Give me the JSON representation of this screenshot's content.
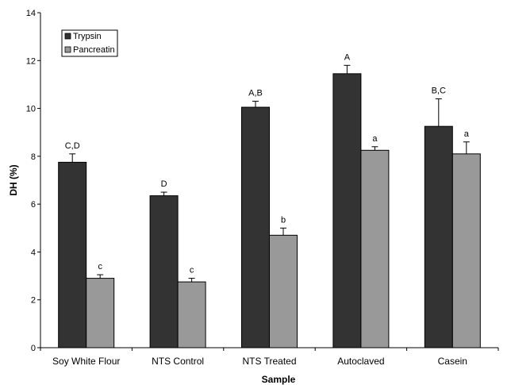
{
  "chart_data": {
    "type": "bar",
    "xlabel": "Sample",
    "ylabel": "DH (%)",
    "ylim": [
      0,
      14
    ],
    "yticks": [
      0,
      2,
      4,
      6,
      8,
      10,
      12,
      14
    ],
    "grid": false,
    "legend_position": "top-left",
    "categories": [
      "Soy White Flour",
      "NTS Control",
      "NTS Treated",
      "Autoclaved",
      "Casein"
    ],
    "series": [
      {
        "name": "Trypsin",
        "color": "#333333",
        "values": [
          7.75,
          6.35,
          10.05,
          11.45,
          9.25
        ],
        "errors": [
          0.35,
          0.15,
          0.25,
          0.35,
          1.15
        ],
        "labels": [
          "C,D",
          "D",
          "A,B",
          "A",
          "B,C"
        ]
      },
      {
        "name": "Pancreatin",
        "color": "#999999",
        "values": [
          2.9,
          2.75,
          4.7,
          8.25,
          8.1
        ],
        "errors": [
          0.15,
          0.15,
          0.3,
          0.15,
          0.5
        ],
        "labels": [
          "c",
          "c",
          "b",
          "a",
          "a"
        ]
      }
    ]
  }
}
